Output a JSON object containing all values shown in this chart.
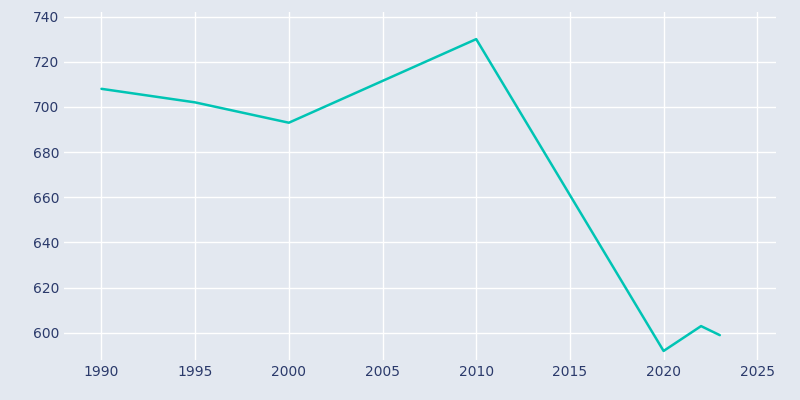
{
  "years": [
    1990,
    1995,
    2000,
    2010,
    2020,
    2022,
    2023
  ],
  "population": [
    708,
    702,
    693,
    730,
    592,
    603,
    599
  ],
  "line_color": "#00C4B4",
  "bg_color": "#E3E8F0",
  "grid_color": "#ffffff",
  "text_color": "#2b3a6b",
  "xlim": [
    1988,
    2026
  ],
  "ylim": [
    588,
    742
  ],
  "yticks": [
    600,
    620,
    640,
    660,
    680,
    700,
    720,
    740
  ],
  "xticks": [
    1990,
    1995,
    2000,
    2005,
    2010,
    2015,
    2020,
    2025
  ],
  "linewidth": 1.8
}
